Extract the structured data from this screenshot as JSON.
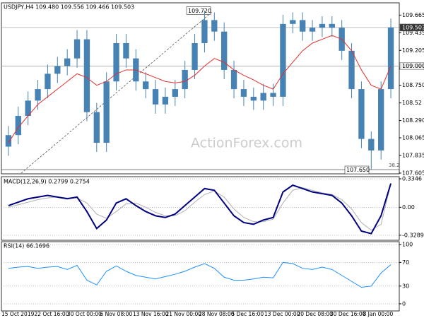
{
  "chart_data": [
    {
      "type": "candlestick",
      "title": "USDJPY,H4  109.480 109.556 109.466 109.503",
      "watermark": "ActionForex.com",
      "color": "#4682b4",
      "x_labels": [
        "15 Oct 2019",
        "22 Oct 16:00",
        "30 Oct 00:00",
        "6 Nov 08:00",
        "13 Nov 16:00",
        "21 Nov 00:00",
        "28 Nov 08:00",
        "5 Dec 16:00",
        "13 Dec 00:00",
        "20 Dec 08:00",
        "30 Dec 16:00",
        "8 Jan 00:00"
      ],
      "open": [
        107.95,
        108.1,
        108.35,
        108.55,
        108.7,
        108.9,
        109.0,
        109.1,
        109.35,
        108.4,
        108.0,
        108.8,
        109.3,
        109.1,
        108.8,
        108.7,
        108.5,
        108.6,
        108.7,
        108.95,
        109.3,
        109.6,
        109.45,
        108.95,
        108.7,
        108.6,
        108.55,
        108.65,
        108.6,
        109.55,
        109.6,
        109.45,
        109.5,
        109.55,
        109.5,
        109.2,
        108.7,
        108.05,
        107.9,
        108.7
      ],
      "high": [
        108.22,
        108.47,
        108.67,
        108.82,
        109.02,
        109.12,
        109.22,
        109.47,
        109.47,
        108.52,
        108.92,
        109.42,
        109.42,
        109.22,
        108.92,
        108.82,
        108.72,
        108.82,
        109.07,
        109.42,
        109.72,
        109.7,
        109.57,
        109.07,
        108.82,
        108.72,
        108.77,
        108.77,
        109.67,
        109.7,
        109.7,
        109.6,
        109.65,
        109.65,
        109.6,
        109.3,
        108.8,
        108.15,
        108.8,
        109.62
      ],
      "low": [
        107.83,
        107.98,
        108.23,
        108.43,
        108.58,
        108.78,
        108.88,
        108.98,
        108.28,
        107.88,
        107.88,
        108.68,
        108.98,
        108.68,
        108.58,
        108.38,
        108.38,
        108.48,
        108.58,
        108.83,
        109.18,
        109.33,
        108.83,
        108.58,
        108.48,
        108.43,
        108.43,
        108.48,
        108.48,
        109.43,
        109.33,
        109.33,
        109.38,
        109.38,
        109.08,
        108.58,
        107.93,
        107.65,
        107.78,
        108.58
      ],
      "close": [
        108.1,
        108.35,
        108.55,
        108.7,
        108.9,
        109.0,
        109.1,
        109.35,
        108.4,
        108.0,
        108.8,
        109.3,
        109.1,
        108.8,
        108.7,
        108.5,
        108.6,
        108.7,
        108.95,
        109.3,
        109.6,
        109.45,
        108.95,
        108.7,
        108.6,
        108.55,
        108.65,
        108.6,
        109.55,
        109.6,
        109.45,
        109.5,
        109.55,
        109.5,
        109.2,
        108.7,
        108.05,
        107.9,
        108.7,
        109.503
      ],
      "ma": {
        "color": "#e03030",
        "values": [
          108.0,
          108.2,
          108.35,
          108.5,
          108.6,
          108.7,
          108.8,
          108.9,
          108.85,
          108.75,
          108.8,
          108.9,
          108.95,
          108.95,
          108.9,
          108.85,
          108.8,
          108.78,
          108.8,
          108.88,
          109.0,
          109.1,
          109.05,
          108.95,
          108.88,
          108.82,
          108.75,
          108.7,
          108.9,
          109.05,
          109.2,
          109.3,
          109.35,
          109.4,
          109.35,
          109.2,
          108.95,
          108.75,
          108.7,
          109.0
        ]
      },
      "ylim": [
        107.595,
        109.825
      ],
      "yticks": [
        109.665,
        109.435,
        109.205,
        108.975,
        {
          "value": 108.75,
          "label": "108.750"
        },
        108.52,
        {
          "value": 108.29,
          "label": "108.290"
        },
        108.065,
        107.835,
        107.605
      ],
      "levels": [
        {
          "value": 109.503,
          "label": "109.503"
        },
        {
          "value": 109.0,
          "label": "109.000"
        }
      ],
      "annotations": [
        {
          "value": 109.72,
          "label": "109.720"
        },
        {
          "value": 107.65,
          "label": "107.650"
        },
        {
          "text": "38.2"
        }
      ]
    },
    {
      "type": "line",
      "title": "MACD(12,26,9) 0.2799 0.2754",
      "ylim": [
        -0.388,
        0.36
      ],
      "yticks": [
        0.3346,
        {
          "value": 0,
          "label": "0.00"
        },
        -0.3289
      ],
      "series": [
        {
          "color": "#000080",
          "values": [
            0.02,
            0.06,
            0.1,
            0.12,
            0.14,
            0.12,
            0.1,
            0.12,
            -0.05,
            -0.25,
            -0.15,
            0.05,
            0.1,
            0.02,
            -0.05,
            -0.1,
            -0.12,
            -0.08,
            0.02,
            0.12,
            0.22,
            0.2,
            0.05,
            -0.1,
            -0.18,
            -0.2,
            -0.15,
            -0.12,
            0.18,
            0.26,
            0.22,
            0.18,
            0.16,
            0.14,
            0.05,
            -0.1,
            -0.28,
            -0.31,
            -0.1,
            0.2799
          ]
        },
        {
          "color": "#b0b0b0",
          "values": [
            0.0,
            0.03,
            0.06,
            0.09,
            0.11,
            0.12,
            0.11,
            0.11,
            0.05,
            -0.08,
            -0.13,
            -0.05,
            0.04,
            0.05,
            0.0,
            -0.06,
            -0.1,
            -0.1,
            -0.04,
            0.06,
            0.15,
            0.19,
            0.12,
            -0.02,
            -0.12,
            -0.17,
            -0.17,
            -0.14,
            0.05,
            0.2,
            0.23,
            0.2,
            0.17,
            0.15,
            0.09,
            -0.02,
            -0.18,
            -0.27,
            -0.2,
            0.2754
          ]
        }
      ]
    },
    {
      "type": "line",
      "title": "RSI(14) 66.1696",
      "ylim": [
        -12,
        105
      ],
      "yticks": [
        100,
        70,
        30,
        0
      ],
      "series": [
        {
          "color": "#1e90ff",
          "values": [
            60,
            62,
            63,
            60,
            62,
            63,
            58,
            65,
            40,
            32,
            55,
            64,
            55,
            48,
            45,
            42,
            46,
            50,
            55,
            62,
            68,
            60,
            45,
            40,
            40,
            42,
            45,
            44,
            70,
            68,
            60,
            58,
            62,
            58,
            48,
            38,
            28,
            30,
            52,
            66.1696
          ]
        }
      ]
    }
  ]
}
